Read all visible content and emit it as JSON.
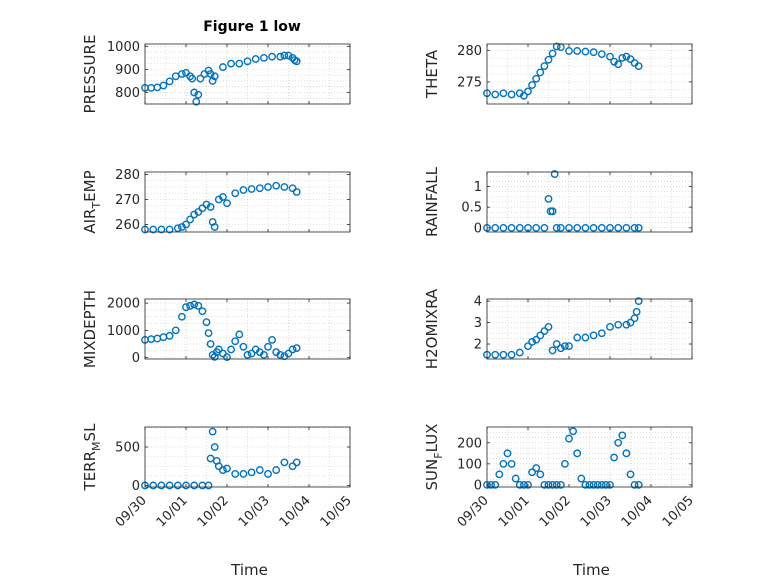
{
  "figure": {
    "title": "Figure 1 low",
    "xlabel": "Time"
  },
  "colors": {
    "marker": "#0072BD",
    "axis": "#262626",
    "grid": "#c8c8c8",
    "background": "#ffffff"
  },
  "x_tick_labels": [
    "09/30",
    "10/01",
    "10/02",
    "10/03",
    "10/04",
    "10/05"
  ],
  "chart_data": [
    {
      "type": "scatter",
      "ylabel_base": "PRESSURE",
      "ylim": [
        750,
        1010
      ],
      "yticks": [
        800,
        900,
        1000
      ],
      "grid": true,
      "show_title": true,
      "x": [
        0,
        0.15,
        0.3,
        0.45,
        0.6,
        0.75,
        0.9,
        1.0,
        1.1,
        1.15,
        1.2,
        1.25,
        1.3,
        1.35,
        1.45,
        1.55,
        1.6,
        1.65,
        1.7,
        1.9,
        2.1,
        2.3,
        2.5,
        2.7,
        2.9,
        3.1,
        3.3,
        3.4,
        3.5,
        3.6,
        3.65,
        3.7
      ],
      "y": [
        820,
        820,
        822,
        830,
        848,
        870,
        880,
        885,
        870,
        860,
        800,
        760,
        790,
        860,
        880,
        895,
        880,
        850,
        870,
        910,
        925,
        925,
        935,
        945,
        950,
        955,
        955,
        960,
        960,
        950,
        940,
        935
      ]
    },
    {
      "type": "scatter",
      "ylabel_base": "THETA",
      "ylim": [
        271.5,
        281
      ],
      "yticks": [
        275,
        280
      ],
      "grid": true,
      "show_title": false,
      "x": [
        0,
        0.2,
        0.4,
        0.6,
        0.8,
        0.9,
        1.0,
        1.1,
        1.2,
        1.3,
        1.4,
        1.5,
        1.6,
        1.7,
        1.8,
        2.0,
        2.2,
        2.4,
        2.6,
        2.8,
        3.0,
        3.1,
        3.2,
        3.3,
        3.4,
        3.5,
        3.6,
        3.7
      ],
      "y": [
        273.2,
        273.0,
        273.2,
        273.0,
        273.2,
        272.8,
        273.5,
        274.5,
        275.5,
        276.5,
        277.5,
        278.5,
        279.5,
        280.6,
        280.5,
        279.9,
        279.9,
        279.8,
        279.7,
        279.4,
        279.0,
        278.2,
        277.8,
        278.8,
        279.0,
        278.6,
        278.0,
        277.5
      ]
    },
    {
      "type": "scatter",
      "ylabel_base": "AIR",
      "ylabel_sub": "T",
      "ylabel_rest": "EMP",
      "ylim": [
        257,
        281
      ],
      "yticks": [
        260,
        270,
        280
      ],
      "grid": true,
      "show_title": false,
      "x": [
        0,
        0.2,
        0.4,
        0.6,
        0.8,
        0.9,
        1.0,
        1.1,
        1.2,
        1.3,
        1.4,
        1.5,
        1.6,
        1.65,
        1.7,
        1.8,
        1.9,
        2.0,
        2.2,
        2.4,
        2.6,
        2.8,
        3.0,
        3.2,
        3.4,
        3.6,
        3.7
      ],
      "y": [
        258,
        258,
        258,
        258,
        258.5,
        259,
        260,
        262,
        264,
        265,
        266.5,
        268,
        267,
        261,
        259,
        270,
        271,
        268.5,
        272.5,
        273.8,
        274.2,
        274.5,
        275,
        275.5,
        275,
        274.5,
        273
      ]
    },
    {
      "type": "scatter",
      "ylabel_base": "RAINFALL",
      "ylim": [
        -0.1,
        1.35
      ],
      "yticks": [
        0,
        0.5,
        1
      ],
      "grid": true,
      "show_title": false,
      "x": [
        0,
        0.2,
        0.4,
        0.6,
        0.8,
        1.0,
        1.2,
        1.4,
        1.5,
        1.55,
        1.6,
        1.65,
        1.7,
        1.8,
        2.0,
        2.2,
        2.4,
        2.6,
        2.8,
        3.0,
        3.2,
        3.4,
        3.6,
        3.7
      ],
      "y": [
        0,
        0,
        0,
        0,
        0,
        0,
        0,
        0,
        0.7,
        0.4,
        0.4,
        1.3,
        0,
        0,
        0,
        0,
        0,
        0,
        0,
        0,
        0,
        0,
        0,
        0
      ]
    },
    {
      "type": "scatter",
      "ylabel_base": "MIXDEPTH",
      "ylim": [
        -50,
        2150
      ],
      "yticks": [
        0,
        1000,
        2000
      ],
      "grid": true,
      "show_title": false,
      "x": [
        0,
        0.15,
        0.3,
        0.45,
        0.6,
        0.75,
        0.9,
        1.0,
        1.1,
        1.2,
        1.3,
        1.4,
        1.5,
        1.55,
        1.6,
        1.65,
        1.7,
        1.75,
        1.8,
        1.9,
        2.0,
        2.1,
        2.2,
        2.3,
        2.4,
        2.5,
        2.6,
        2.7,
        2.8,
        2.9,
        3.0,
        3.1,
        3.2,
        3.3,
        3.4,
        3.5,
        3.6,
        3.7
      ],
      "y": [
        650,
        680,
        700,
        750,
        800,
        1000,
        1500,
        1850,
        1900,
        1950,
        1900,
        1700,
        1300,
        900,
        500,
        100,
        30,
        200,
        300,
        150,
        20,
        300,
        600,
        850,
        400,
        100,
        150,
        300,
        200,
        100,
        400,
        650,
        200,
        100,
        50,
        150,
        300,
        350
      ]
    },
    {
      "type": "scatter",
      "ylabel_base": "H2OMIXRA",
      "ylim": [
        1.3,
        4.1
      ],
      "yticks": [
        2,
        3,
        4
      ],
      "grid": true,
      "show_title": false,
      "x": [
        0,
        0.2,
        0.4,
        0.6,
        0.8,
        1.0,
        1.1,
        1.2,
        1.3,
        1.4,
        1.5,
        1.6,
        1.7,
        1.8,
        1.9,
        2.0,
        2.2,
        2.4,
        2.6,
        2.8,
        3.0,
        3.2,
        3.4,
        3.5,
        3.6,
        3.65,
        3.7
      ],
      "y": [
        1.5,
        1.5,
        1.5,
        1.5,
        1.6,
        1.9,
        2.1,
        2.2,
        2.4,
        2.6,
        2.8,
        1.7,
        2.0,
        1.8,
        1.9,
        1.9,
        2.3,
        2.3,
        2.4,
        2.5,
        2.8,
        2.9,
        2.9,
        3.0,
        3.2,
        3.5,
        4.0
      ]
    },
    {
      "type": "scatter",
      "ylabel_base": "TERR",
      "ylabel_sub": "M",
      "ylabel_rest": "SL",
      "ylim": [
        -20,
        760
      ],
      "yticks": [
        0,
        500
      ],
      "grid": true,
      "show_title": false,
      "x": [
        0,
        0.2,
        0.4,
        0.6,
        0.8,
        1.0,
        1.2,
        1.4,
        1.55,
        1.6,
        1.65,
        1.7,
        1.75,
        1.8,
        1.9,
        2.0,
        2.2,
        2.4,
        2.6,
        2.8,
        3.0,
        3.2,
        3.4,
        3.6,
        3.7
      ],
      "y": [
        0,
        0,
        0,
        0,
        0,
        0,
        0,
        0,
        0,
        350,
        700,
        500,
        320,
        250,
        200,
        220,
        150,
        150,
        170,
        200,
        150,
        200,
        300,
        250,
        300
      ]
    },
    {
      "type": "scatter",
      "ylabel_base": "SUN",
      "ylabel_sub": "F",
      "ylabel_rest": "LUX",
      "ylim": [
        -10,
        275
      ],
      "yticks": [
        0,
        100,
        200
      ],
      "grid": true,
      "show_title": false,
      "x": [
        0,
        0.1,
        0.2,
        0.3,
        0.4,
        0.5,
        0.6,
        0.7,
        0.8,
        0.9,
        1.0,
        1.1,
        1.2,
        1.3,
        1.4,
        1.5,
        1.6,
        1.7,
        1.8,
        1.9,
        2.0,
        2.1,
        2.2,
        2.3,
        2.4,
        2.5,
        2.6,
        2.7,
        2.8,
        2.9,
        3.0,
        3.1,
        3.2,
        3.3,
        3.4,
        3.5,
        3.6,
        3.7
      ],
      "y": [
        0,
        0,
        0,
        50,
        100,
        150,
        100,
        30,
        0,
        0,
        0,
        60,
        80,
        50,
        0,
        0,
        0,
        0,
        0,
        100,
        220,
        255,
        150,
        30,
        0,
        0,
        0,
        0,
        0,
        0,
        0,
        130,
        200,
        235,
        150,
        50,
        0,
        0
      ]
    }
  ]
}
